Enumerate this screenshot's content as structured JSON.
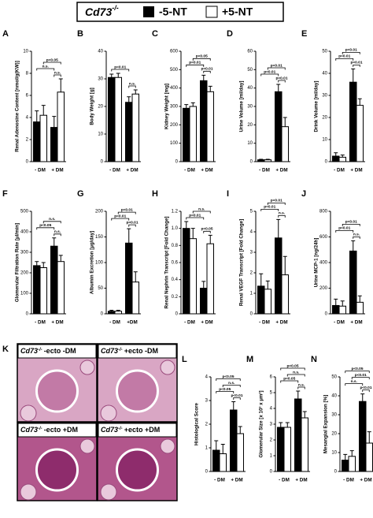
{
  "legend": {
    "genotype": "Cd73",
    "genotype_sup": "-/-"
  },
  "chart_data": [
    {
      "label": "A",
      "type": "bar",
      "ylabel": "Renal Adenosine Content [nmol/g(KW)]",
      "categories": [
        "- DM",
        "+ DM"
      ],
      "series": [
        {
          "name": "-5-NT",
          "color": "#000000",
          "values": [
            3.6,
            3.1
          ],
          "errors": [
            1.0,
            1.0
          ]
        },
        {
          "name": "+5-NT",
          "color": "#ffffff",
          "values": [
            4.2,
            6.3
          ],
          "errors": [
            0.9,
            1.2
          ]
        }
      ],
      "ylim": [
        0,
        10
      ],
      "yticks": [
        0,
        2,
        4,
        6,
        8,
        10
      ],
      "annotations": [
        "p<0.05",
        "n.s.",
        "n.s."
      ]
    },
    {
      "label": "B",
      "type": "bar",
      "ylabel": "Body Weight [g]",
      "categories": [
        "- DM",
        "+ DM"
      ],
      "series": [
        {
          "name": "-5-NT",
          "color": "#000000",
          "values": [
            30.5,
            21.5
          ],
          "errors": [
            1.2,
            2
          ]
        },
        {
          "name": "+5-NT",
          "color": "#ffffff",
          "values": [
            30.5,
            24.5
          ],
          "errors": [
            1.5,
            1.5
          ]
        }
      ],
      "ylim": [
        0,
        40
      ],
      "yticks": [
        0,
        10,
        20,
        30,
        40
      ],
      "annotations": [
        "p<0.01",
        "n.s."
      ]
    },
    {
      "label": "C",
      "type": "bar",
      "ylabel": "Kidney Weight [mg]",
      "categories": [
        "- DM",
        "+ DM"
      ],
      "series": [
        {
          "name": "-5-NT",
          "color": "#000000",
          "values": [
            290,
            440
          ],
          "errors": [
            20,
            30
          ]
        },
        {
          "name": "+5-NT",
          "color": "#ffffff",
          "values": [
            300,
            380
          ],
          "errors": [
            20,
            30
          ]
        }
      ],
      "ylim": [
        0,
        600
      ],
      "yticks": [
        0,
        100,
        200,
        300,
        400,
        500,
        600
      ],
      "annotations": [
        "p<0.05",
        "p<0.01",
        "p<0.01"
      ]
    },
    {
      "label": "D",
      "type": "bar",
      "ylabel": "Urine Volume [ml/day]",
      "categories": [
        "- DM",
        "+ DM"
      ],
      "series": [
        {
          "name": "-5-NT",
          "color": "#000000",
          "values": [
            1,
            38
          ],
          "errors": [
            0.3,
            4
          ]
        },
        {
          "name": "+5-NT",
          "color": "#ffffff",
          "values": [
            1,
            19
          ],
          "errors": [
            0.3,
            5
          ]
        }
      ],
      "ylim": [
        0,
        60
      ],
      "yticks": [
        0,
        10,
        20,
        30,
        40,
        50,
        60
      ],
      "annotations": [
        "p<0.01",
        "p<0.01",
        "p<0.01"
      ]
    },
    {
      "label": "E",
      "type": "bar",
      "ylabel": "Drink Volume [ml/day]",
      "categories": [
        "- DM",
        "+ DM"
      ],
      "series": [
        {
          "name": "-5-NT",
          "color": "#000000",
          "values": [
            2.5,
            36
          ],
          "errors": [
            1.5,
            6
          ]
        },
        {
          "name": "+5-NT",
          "color": "#ffffff",
          "values": [
            2,
            25.5
          ],
          "errors": [
            1,
            3
          ]
        }
      ],
      "ylim": [
        0,
        50
      ],
      "yticks": [
        0,
        10,
        20,
        30,
        40,
        50
      ],
      "annotations": [
        "p<0.01",
        "p<0.01",
        "p<0.01"
      ]
    },
    {
      "label": "F",
      "type": "bar",
      "ylabel": "Glomerular Filtration Rate [µl/min]",
      "categories": [
        "- DM",
        "+ DM"
      ],
      "series": [
        {
          "name": "-5-NT",
          "color": "#000000",
          "values": [
            235,
            330
          ],
          "errors": [
            20,
            40
          ]
        },
        {
          "name": "+5-NT",
          "color": "#ffffff",
          "values": [
            225,
            255
          ],
          "errors": [
            25,
            30
          ]
        }
      ],
      "ylim": [
        0,
        500
      ],
      "yticks": [
        0,
        100,
        200,
        300,
        400,
        500
      ],
      "annotations": [
        "n.s.",
        "p<0.05",
        "n.s."
      ]
    },
    {
      "label": "G",
      "type": "bar",
      "ylabel": "Albumin Excretion [µg/day]",
      "categories": [
        "- DM",
        "+DM"
      ],
      "series": [
        {
          "name": "-5-NT",
          "color": "#000000",
          "values": [
            5,
            138
          ],
          "errors": [
            2,
            28
          ]
        },
        {
          "name": "+5-NT",
          "color": "#ffffff",
          "values": [
            5,
            62
          ],
          "errors": [
            2,
            20
          ]
        }
      ],
      "ylim": [
        0,
        200
      ],
      "yticks": [
        0,
        50,
        100,
        150,
        200
      ],
      "annotations": [
        "p<0.01",
        "p<0.01",
        "p<0.01"
      ]
    },
    {
      "label": "H",
      "type": "bar",
      "ylabel": "Renal Nephrin Transcript [Fold Change]",
      "categories": [
        "- DM",
        "+ DM"
      ],
      "series": [
        {
          "name": "-5-NT",
          "color": "#000000",
          "values": [
            1.0,
            0.3
          ],
          "errors": [
            0.08,
            0.08
          ]
        },
        {
          "name": "+5-NT",
          "color": "#ffffff",
          "values": [
            0.88,
            0.82
          ],
          "errors": [
            0.12,
            0.1
          ]
        }
      ],
      "ylim": [
        0,
        1.2
      ],
      "yticks": [
        0,
        0.2,
        0.4,
        0.6,
        0.8,
        {
          "value": 1,
          "label": "1.0"
        },
        1.2
      ],
      "annotations": [
        "n.s.",
        "p<0.01",
        "p<0.05"
      ]
    },
    {
      "label": "I",
      "type": "bar",
      "ylabel": "Renal VEGF Transcript [Fold Change]",
      "categories": [
        "- DM",
        "+ DM"
      ],
      "series": [
        {
          "name": "-5-NT",
          "color": "#000000",
          "values": [
            1.35,
            3.7
          ],
          "errors": [
            0.6,
            0.9
          ]
        },
        {
          "name": "+5-NT",
          "color": "#ffffff",
          "values": [
            1.2,
            1.9
          ],
          "errors": [
            0.4,
            0.9
          ]
        }
      ],
      "ylim": [
        0,
        5
      ],
      "yticks": [
        0,
        1,
        2,
        3,
        4,
        5
      ],
      "annotations": [
        "p<0.01",
        "p<0.01",
        "n.s."
      ]
    },
    {
      "label": "J",
      "type": "bar",
      "ylabel": "Urine MCP-1 [ng/24h]",
      "categories": [
        "- DM",
        "+ DM"
      ],
      "series": [
        {
          "name": "-5-NT",
          "color": "#000000",
          "values": [
            65,
            490
          ],
          "errors": [
            50,
            80
          ]
        },
        {
          "name": "+5-NT",
          "color": "#ffffff",
          "values": [
            60,
            90
          ],
          "errors": [
            40,
            50
          ]
        }
      ],
      "ylim": [
        0,
        800
      ],
      "yticks": [
        0,
        200,
        400,
        600,
        800
      ],
      "annotations": [
        "p<0.01",
        "p<0.01",
        "n.s."
      ]
    },
    {
      "label": "L",
      "type": "bar",
      "ylabel": "Histological Score",
      "categories": [
        "- DM",
        "+ DM"
      ],
      "series": [
        {
          "name": "-5-NT",
          "color": "#000000",
          "values": [
            0.9,
            2.6
          ],
          "errors": [
            0.4,
            0.35
          ]
        },
        {
          "name": "+5-NT",
          "color": "#ffffff",
          "values": [
            0.75,
            1.6
          ],
          "errors": [
            0.4,
            0.3
          ]
        }
      ],
      "ylim": [
        0,
        4
      ],
      "yticks": [
        0,
        1,
        2,
        3,
        4
      ],
      "annotations": [
        "p<0.05",
        "n.s.",
        "p<0.05",
        "p<0.01"
      ]
    },
    {
      "label": "M",
      "type": "bar",
      "ylabel": "Glomerular Size [x 10³ x µm²]",
      "categories": [
        "- DM",
        "+ DM"
      ],
      "series": [
        {
          "name": "-5-NT",
          "color": "#000000",
          "values": [
            2.8,
            4.6
          ],
          "errors": [
            0.3,
            0.5
          ]
        },
        {
          "name": "+5-NT",
          "color": "#ffffff",
          "values": [
            2.8,
            3.4
          ],
          "errors": [
            0.3,
            0.4
          ]
        }
      ],
      "ylim": [
        0,
        6
      ],
      "yticks": [
        0,
        1,
        2,
        3,
        4,
        5,
        6
      ],
      "annotations": [
        "p<0.05",
        "n.s.",
        "p<0.05",
        "n.s."
      ]
    },
    {
      "label": "N",
      "type": "bar",
      "ylabel": "Mesangial Expansion [%]",
      "categories": [
        "- DM",
        "+ DM"
      ],
      "series": [
        {
          "name": "-5-NT",
          "color": "#000000",
          "values": [
            6,
            37
          ],
          "errors": [
            3,
            4
          ]
        },
        {
          "name": "+5-NT",
          "color": "#ffffff",
          "values": [
            8,
            15
          ],
          "errors": [
            3,
            6
          ]
        }
      ],
      "ylim": [
        0,
        50
      ],
      "yticks": [
        0,
        10,
        20,
        30,
        40,
        50
      ],
      "annotations": [
        "p<0.05",
        "p<0.01",
        "n.s.",
        "p<0.01"
      ]
    }
  ],
  "panel_k": {
    "label": "K",
    "images": [
      {
        "genotype": "Cd73",
        "sup": "-/-",
        "condition": "-ecto -DM"
      },
      {
        "genotype": "Cd73",
        "sup": "-/-",
        "condition": "+ecto -DM"
      },
      {
        "genotype": "Cd73",
        "sup": "-/-",
        "condition": "-ecto +DM"
      },
      {
        "genotype": "Cd73",
        "sup": "-/-",
        "condition": "+ecto +DM"
      }
    ]
  }
}
